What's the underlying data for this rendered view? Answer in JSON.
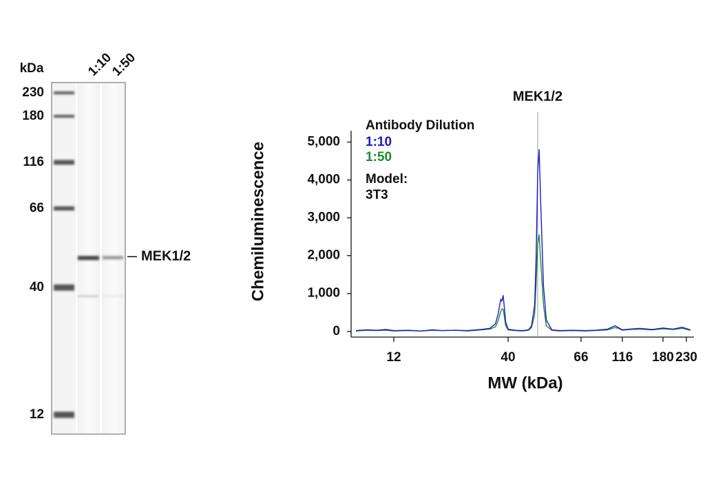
{
  "gel": {
    "unit_label": "kDa",
    "markers": [
      230,
      180,
      116,
      66,
      40,
      12
    ],
    "lanes": [
      "1:10",
      "1:50"
    ],
    "band_label": "MEK1/2"
  },
  "chart_data": {
    "type": "line",
    "title": "MEK1/2",
    "xlabel": "MW (kDa)",
    "ylabel": "Chemiluminescence",
    "x": [
      8,
      9,
      10,
      11,
      12,
      14,
      16,
      18,
      20,
      23,
      26,
      30,
      33,
      35,
      36,
      37,
      37.5,
      38,
      38.5,
      39,
      40,
      42,
      44,
      46,
      47,
      48,
      48.5,
      49,
      49.5,
      50,
      51,
      52,
      54,
      57,
      62,
      70,
      80,
      95,
      105,
      110,
      116,
      125,
      140,
      160,
      180,
      200,
      220,
      240
    ],
    "series": [
      {
        "name": "1:10",
        "color": "#1a1acc",
        "values": [
          20,
          40,
          30,
          50,
          20,
          30,
          10,
          40,
          20,
          30,
          20,
          50,
          80,
          200,
          450,
          850,
          800,
          950,
          600,
          250,
          60,
          30,
          20,
          40,
          150,
          700,
          2000,
          4200,
          4800,
          3500,
          1200,
          300,
          40,
          20,
          30,
          20,
          30,
          60,
          150,
          100,
          40,
          60,
          80,
          50,
          90,
          60,
          110,
          40
        ]
      },
      {
        "name": "1:50",
        "color": "#1e8a2e",
        "values": [
          10,
          30,
          20,
          30,
          10,
          20,
          10,
          30,
          20,
          30,
          10,
          40,
          60,
          120,
          280,
          520,
          600,
          580,
          380,
          150,
          40,
          20,
          10,
          30,
          100,
          450,
          1300,
          2300,
          2550,
          1900,
          700,
          150,
          30,
          10,
          20,
          10,
          20,
          40,
          100,
          80,
          30,
          50,
          60,
          40,
          70,
          50,
          80,
          30
        ]
      }
    ],
    "xlim": [
      7.6,
      249
    ],
    "xticks": [
      12,
      40,
      66,
      116,
      180,
      230
    ],
    "ylim": [
      -150,
      5300
    ],
    "yticks": [
      0,
      {
        "value": 1000,
        "label": "1,000"
      },
      {
        "value": 2000,
        "label": "2,000"
      },
      {
        "value": 3000,
        "label": "3,000"
      },
      {
        "value": 4000,
        "label": "4,000"
      },
      {
        "value": 5000,
        "label": "5,000"
      }
    ],
    "reference_line_x": 49,
    "legend": {
      "title": "Antibody Dilution",
      "position": "upper left"
    },
    "annotations": [
      "Model:",
      "3T3"
    ]
  }
}
